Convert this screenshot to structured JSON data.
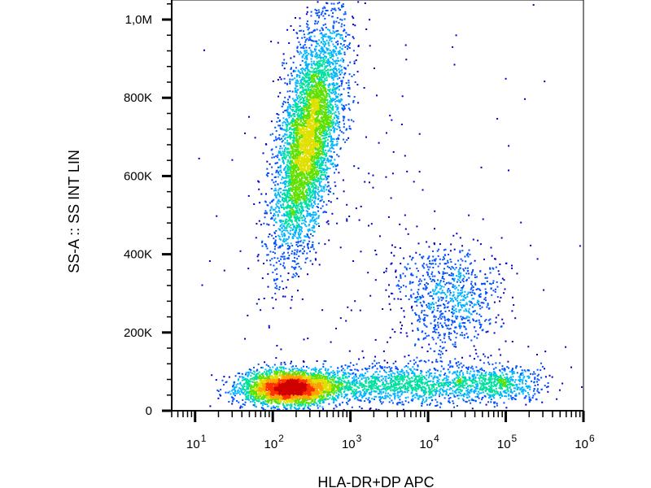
{
  "chart_data": {
    "type": "scatter",
    "subtype": "flow-cytometry density dot plot",
    "xlabel": "HLA-DR+DP APC",
    "ylabel": "SS-A :: SS INT LIN",
    "x_scale": "log",
    "xlim": [
      5,
      1000000
    ],
    "ylim": [
      0,
      1050000
    ],
    "x_tick_labels": [
      {
        "base": "10",
        "exp": "1",
        "value": 10
      },
      {
        "base": "10",
        "exp": "2",
        "value": 100
      },
      {
        "base": "10",
        "exp": "3",
        "value": 1000
      },
      {
        "base": "10",
        "exp": "4",
        "value": 10000
      },
      {
        "base": "10",
        "exp": "5",
        "value": 100000
      },
      {
        "base": "10",
        "exp": "6",
        "value": 1000000
      }
    ],
    "y_ticks": [
      {
        "label": "0",
        "value": 0
      },
      {
        "label": "200K",
        "value": 200000
      },
      {
        "label": "400K",
        "value": 400000
      },
      {
        "label": "600K",
        "value": 600000
      },
      {
        "label": "800K",
        "value": 800000
      },
      {
        "label": "1,0M",
        "value": 1000000
      }
    ],
    "density_colormap": [
      "#0000c8",
      "#0050ff",
      "#00b4ff",
      "#00e0a0",
      "#60e000",
      "#e0e000",
      "#ffa000",
      "#ff3000",
      "#d00000"
    ],
    "populations": [
      {
        "x_log10_center": 2.45,
        "x_log10_sd": 0.18,
        "y_center": 700000,
        "y_sd": 150000,
        "rotation_deg": 10,
        "weight": 0.45
      },
      {
        "x_log10_center": 2.2,
        "x_log10_sd": 0.3,
        "y_center": 60000,
        "y_sd": 22000,
        "rotation_deg": 0,
        "weight": 0.3
      },
      {
        "x_log10_center": 3.6,
        "x_log10_sd": 0.7,
        "y_center": 70000,
        "y_sd": 25000,
        "rotation_deg": 0,
        "weight": 0.14
      },
      {
        "x_log10_center": 4.9,
        "x_log10_sd": 0.3,
        "y_center": 70000,
        "y_sd": 22000,
        "rotation_deg": 0,
        "weight": 0.05
      },
      {
        "x_log10_center": 4.25,
        "x_log10_sd": 0.35,
        "y_center": 290000,
        "y_sd": 70000,
        "rotation_deg": -25,
        "weight": 0.08
      },
      {
        "x_log10_center": 3.4,
        "x_log10_sd": 1.0,
        "y_center": 500000,
        "y_sd": 300000,
        "rotation_deg": 0,
        "weight": 0.015
      }
    ],
    "grid": false,
    "legend": "none"
  }
}
